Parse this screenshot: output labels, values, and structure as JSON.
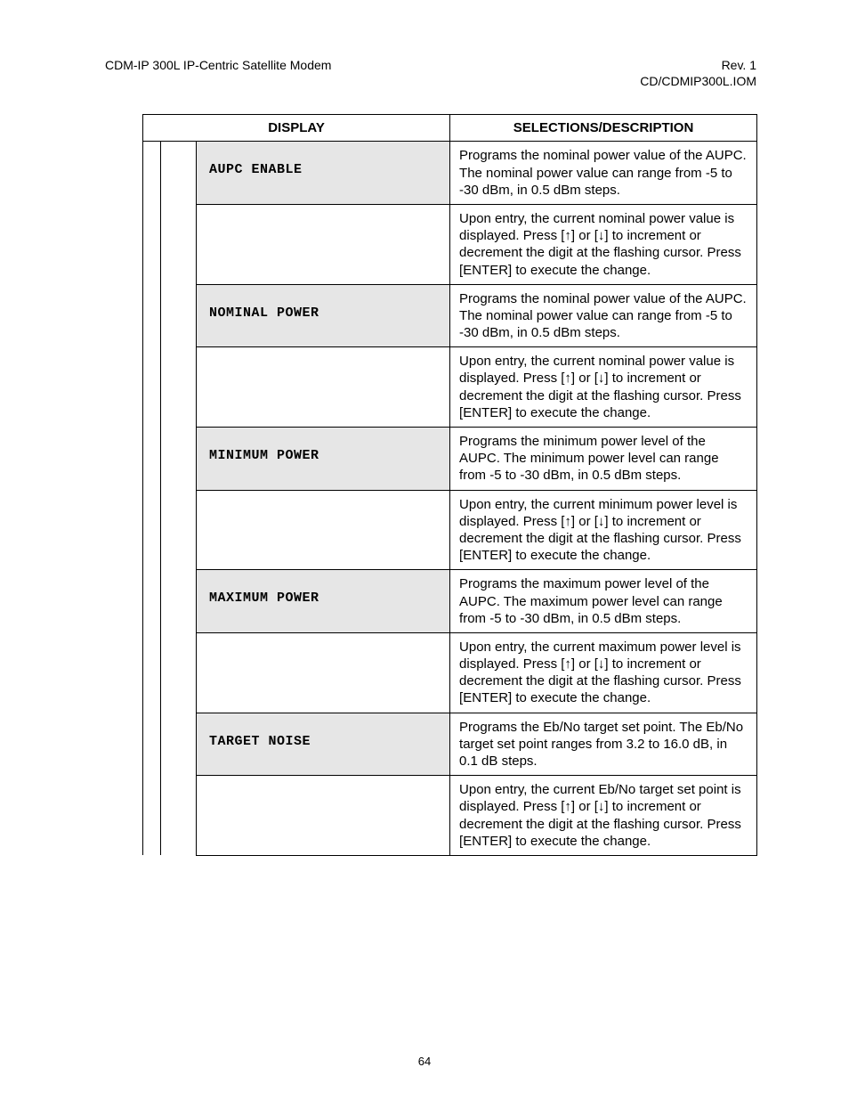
{
  "header": {
    "left": "CDM-IP 300L IP-Centric Satellite Modem",
    "right_line1": "Rev. 1",
    "right_line2": "CD/CDMIP300L.IOM"
  },
  "table": {
    "col_display": "DISPLAY",
    "col_desc": "SELECTIONS/DESCRIPTION",
    "rows": [
      {
        "label": "AUPC ENABLE",
        "desc1": "Programs the nominal power value of the AUPC. The nominal power value can range from -5 to -30 dBm, in 0.5 dBm steps.",
        "desc2": "Upon entry, the current nominal power value is displayed. Press [↑] or [↓] to increment or decrement the digit at the flashing cursor. Press [ENTER] to execute the change."
      },
      {
        "label": "NOMINAL POWER",
        "desc1": "Programs the nominal power value of the AUPC. The nominal power value can range from -5 to -30 dBm, in 0.5 dBm steps.",
        "desc2": "Upon entry, the current nominal power value is displayed. Press [↑] or [↓] to increment or decrement the digit at the flashing cursor. Press [ENTER] to execute the change."
      },
      {
        "label": "MINIMUM POWER",
        "desc1": "Programs the minimum power level of the AUPC. The minimum power level can range from -5 to -30 dBm, in 0.5  dBm steps.",
        "desc2": "Upon entry, the current minimum power level is displayed. Press [↑] or [↓] to increment or decrement the digit at the flashing cursor. Press [ENTER] to execute the change."
      },
      {
        "label": "MAXIMUM POWER",
        "desc1": "Programs the maximum power level of the AUPC. The maximum power level can range from -5 to -30 dBm, in 0.5 dBm steps.",
        "desc2": "Upon entry, the current maximum power level is displayed. Press [↑] or [↓] to increment or decrement the digit at the flashing cursor. Press [ENTER] to execute the change."
      },
      {
        "label": "TARGET NOISE",
        "desc1": "Programs the Eb/No target set point. The Eb/No target set point ranges from 3.2 to 16.0 dB, in 0.1 dB steps.",
        "desc2": "Upon entry, the current Eb/No target set point is displayed. Press [↑] or [↓] to increment or decrement the digit at the flashing cursor. Press [ENTER] to execute the change."
      }
    ]
  },
  "page_number": "64"
}
